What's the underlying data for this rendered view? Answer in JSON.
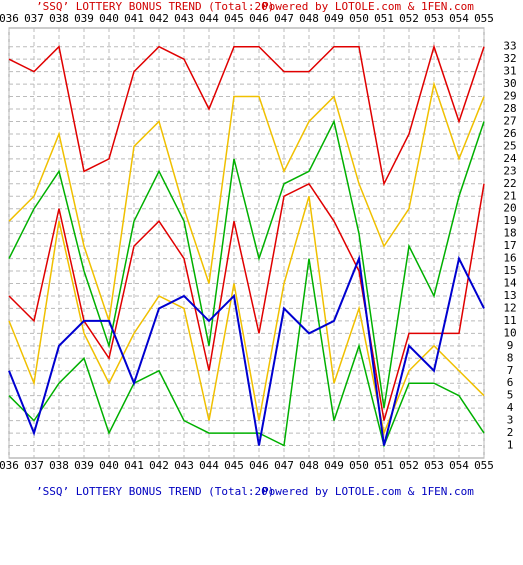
{
  "chart_data": {
    "type": "line",
    "title": "’SSQ’ LOTTERY BONUS TREND (Total:20)",
    "subtitle": "Powered by LOTOLE.com & 1FEN.com",
    "categories": [
      "036",
      "037",
      "038",
      "039",
      "040",
      "041",
      "042",
      "043",
      "044",
      "045",
      "046",
      "047",
      "048",
      "049",
      "050",
      "051",
      "052",
      "053",
      "054",
      "055"
    ],
    "ylim": [
      0,
      34.5
    ],
    "yticks": [
      1,
      2,
      3,
      4,
      5,
      6,
      7,
      8,
      9,
      10,
      11,
      12,
      13,
      14,
      15,
      16,
      17,
      18,
      19,
      20,
      21,
      22,
      23,
      24,
      25,
      26,
      27,
      28,
      29,
      30,
      31,
      32,
      33
    ],
    "grid": true,
    "series": [
      {
        "color": "#e00000",
        "values": [
          32,
          31,
          33,
          23,
          24,
          31,
          33,
          32,
          28,
          33,
          33,
          31,
          31,
          33,
          33,
          22,
          26,
          33,
          27,
          33
        ]
      },
      {
        "color": "#f0c000",
        "values": [
          19,
          21,
          26,
          17,
          11,
          25,
          27,
          20,
          14,
          29,
          29,
          23,
          27,
          29,
          22,
          17,
          20,
          30,
          24,
          29
        ]
      },
      {
        "color": "#00b000",
        "values": [
          16,
          20,
          23,
          15,
          9,
          19,
          23,
          19,
          9,
          24,
          16,
          22,
          23,
          27,
          18,
          4,
          17,
          13,
          21,
          27
        ]
      },
      {
        "color": "#e00000",
        "values": [
          13,
          11,
          20,
          11,
          8,
          17,
          19,
          16,
          7,
          19,
          10,
          21,
          22,
          19,
          15,
          3,
          10,
          10,
          10,
          22
        ]
      },
      {
        "color": "#f0c000",
        "values": [
          11,
          6,
          19,
          10,
          6,
          10,
          13,
          12,
          3,
          14,
          3,
          14,
          21,
          6,
          12,
          2,
          7,
          9,
          7,
          5
        ]
      },
      {
        "color": "#00b000",
        "values": [
          5,
          3,
          6,
          8,
          2,
          6,
          7,
          3,
          2,
          2,
          2,
          1,
          16,
          3,
          9,
          1,
          6,
          6,
          5,
          2
        ]
      },
      {
        "color": "#0000d0",
        "values": [
          7,
          2,
          9,
          11,
          11,
          6,
          12,
          13,
          11,
          13,
          1,
          12,
          10,
          11,
          16,
          1,
          9,
          7,
          16,
          12
        ]
      }
    ]
  }
}
